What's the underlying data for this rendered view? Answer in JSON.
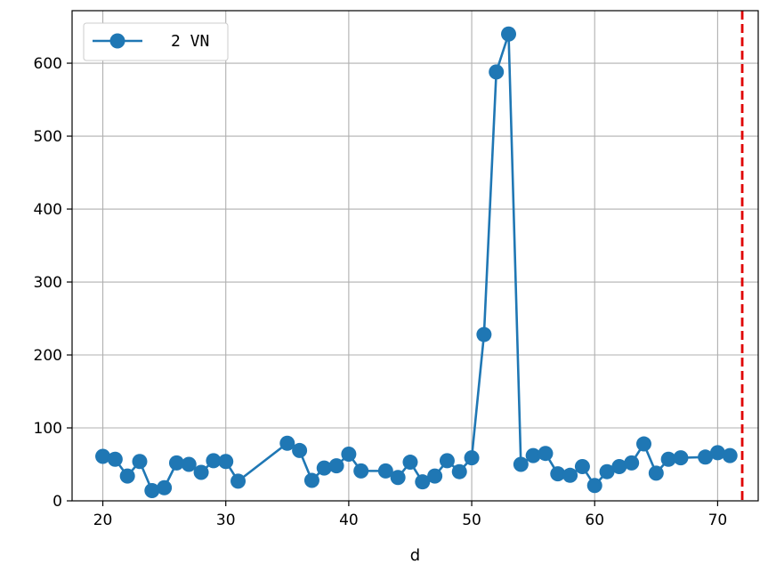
{
  "chart_data": {
    "type": "line",
    "xlabel": "d",
    "ylabel": "",
    "xlim": [
      17.5,
      73.3
    ],
    "ylim": [
      0,
      672
    ],
    "xticks": [
      20,
      30,
      40,
      50,
      60,
      70
    ],
    "yticks": [
      0,
      100,
      200,
      300,
      400,
      500,
      600
    ],
    "grid": true,
    "legend_position": "top-left",
    "series": [
      {
        "name": "2 VN",
        "color": "#1f77b4",
        "marker": "circle",
        "points": [
          [
            20,
            61
          ],
          [
            21,
            57
          ],
          [
            22,
            34
          ],
          [
            23,
            54
          ],
          [
            24,
            14
          ],
          [
            25,
            18
          ],
          [
            26,
            52
          ],
          [
            27,
            50
          ],
          [
            28,
            39
          ],
          [
            29,
            55
          ],
          [
            30,
            54
          ],
          [
            31,
            27
          ],
          [
            35,
            79
          ],
          [
            36,
            69
          ],
          [
            37,
            28
          ],
          [
            38,
            45
          ],
          [
            39,
            48
          ],
          [
            40,
            64
          ],
          [
            41,
            41
          ],
          [
            43,
            41
          ],
          [
            44,
            32
          ],
          [
            45,
            53
          ],
          [
            46,
            26
          ],
          [
            47,
            34
          ],
          [
            48,
            55
          ],
          [
            49,
            40
          ],
          [
            50,
            59
          ],
          [
            51,
            228
          ],
          [
            52,
            588
          ],
          [
            53,
            640
          ],
          [
            54,
            50
          ],
          [
            55,
            62
          ],
          [
            56,
            65
          ],
          [
            57,
            37
          ],
          [
            58,
            35
          ],
          [
            59,
            47
          ],
          [
            60,
            21
          ],
          [
            61,
            40
          ],
          [
            62,
            47
          ],
          [
            63,
            52
          ],
          [
            64,
            78
          ],
          [
            65,
            38
          ],
          [
            66,
            57
          ],
          [
            67,
            59
          ],
          [
            69,
            60
          ],
          [
            70,
            66
          ],
          [
            71,
            62
          ]
        ]
      }
    ],
    "reference_line": {
      "x": 72,
      "color": "#e00000",
      "style": "dashed"
    }
  }
}
